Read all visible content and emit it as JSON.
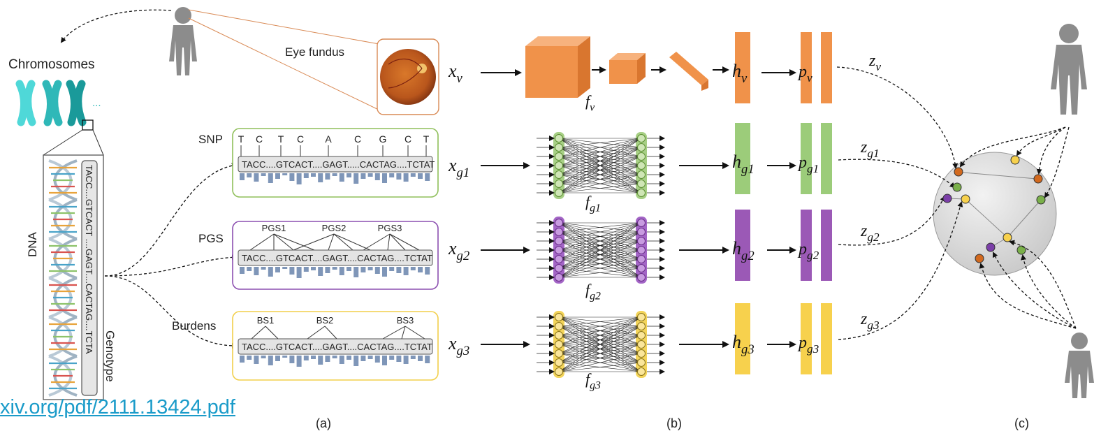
{
  "panel_a": {
    "chromosomes_label": "Chromosomes",
    "ellipsis": "...",
    "dna_label": "DNA",
    "genotype_label": "Genotype",
    "dna_strip_text": "TACC....GTCACT ....GAGT....CACTAG....TCTA",
    "eye_fundus_label": "Eye fundus",
    "snp": {
      "label": "SNP",
      "bases": [
        "T",
        "C",
        "T",
        "C",
        "A",
        "C",
        "G",
        "C",
        "T"
      ],
      "sequence": "TACC....GTCACT....GAGT.....CACTAG....TCTAT",
      "color": "#8fbf5a"
    },
    "pgs": {
      "label": "PGS",
      "scores": [
        "PGS1",
        "PGS2",
        "PGS3"
      ],
      "sequence": "TACC....GTCACT....GAGT....CACTAG....TCTAT",
      "color": "#8c4fb0"
    },
    "burdens": {
      "label": "Burdens",
      "scores": [
        "BS1",
        "BS2",
        "BS3"
      ],
      "sequence": "TACC....GTCACT....GAGT....CACTAG....TCTAT",
      "color": "#f2cf4a"
    },
    "caption": "(a)"
  },
  "panel_b": {
    "inputs": [
      {
        "var": "x",
        "sub": "v"
      },
      {
        "var": "x",
        "sub": "g1"
      },
      {
        "var": "x",
        "sub": "g2"
      },
      {
        "var": "x",
        "sub": "g3"
      }
    ],
    "encoders": [
      {
        "var": "f",
        "sub": "v"
      },
      {
        "var": "f",
        "sub": "g1"
      },
      {
        "var": "f",
        "sub": "g2"
      },
      {
        "var": "f",
        "sub": "g3"
      }
    ],
    "hidden": [
      {
        "var": "h",
        "sub": "v"
      },
      {
        "var": "h",
        "sub": "g1"
      },
      {
        "var": "h",
        "sub": "g2"
      },
      {
        "var": "h",
        "sub": "g3"
      }
    ],
    "projection": [
      {
        "var": "p",
        "sub": "v"
      },
      {
        "var": "p",
        "sub": "g1"
      },
      {
        "var": "p",
        "sub": "g2"
      },
      {
        "var": "p",
        "sub": "g3"
      }
    ],
    "embeddings": [
      {
        "var": "z",
        "sub": "v"
      },
      {
        "var": "z",
        "sub": "g1"
      },
      {
        "var": "z",
        "sub": "g2"
      },
      {
        "var": "z",
        "sub": "g3"
      }
    ],
    "caption": "(b)"
  },
  "panel_c": {
    "caption": "(c)"
  },
  "colors": {
    "vision": "#f0924a",
    "snp": "#9ccc7a",
    "pgs": "#9b59b6",
    "burden": "#f7d14d",
    "silhouette": "#8c8c8c",
    "chromosome": "#2fb8b8"
  },
  "link_text": "xiv.org/pdf/2111.13424.pdf"
}
